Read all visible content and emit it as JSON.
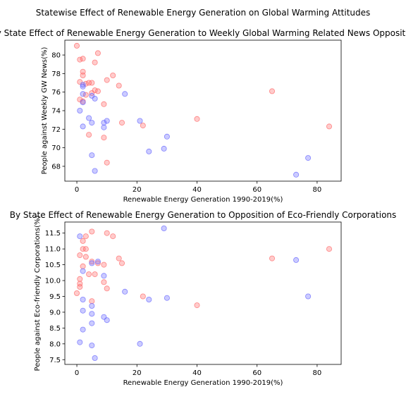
{
  "figure": {
    "suptitle": "Statewise Effect of Renewable Energy Generation on Global Warming Attitudes"
  },
  "chart_data": [
    {
      "type": "scatter",
      "title": "By State Effect of Renewable Energy Generation to Weekly Global Warming Related News Opposition",
      "xlabel": "Renewable Energy Generation 1990-2019(%)",
      "ylabel": "People against Weekly GW News(%)",
      "xlim": [
        -4,
        88
      ],
      "ylim": [
        66.4,
        81.6
      ],
      "xticks": [
        0,
        20,
        40,
        60,
        80
      ],
      "yticks": [
        68,
        70,
        72,
        74,
        76,
        78,
        80
      ],
      "grid": false,
      "series": [
        {
          "color": "#ff6b6b",
          "points": [
            [
              0,
              81.0
            ],
            [
              7,
              80.2
            ],
            [
              1,
              79.5
            ],
            [
              2,
              79.6
            ],
            [
              6,
              79.2
            ],
            [
              2,
              78.2
            ],
            [
              2,
              77.8
            ],
            [
              12,
              77.8
            ],
            [
              1,
              77.1
            ],
            [
              3,
              76.9
            ],
            [
              4,
              77.0
            ],
            [
              5,
              77.0
            ],
            [
              10,
              77.3
            ],
            [
              14,
              76.7
            ],
            [
              6,
              76.2
            ],
            [
              7,
              76.1
            ],
            [
              3,
              75.7
            ],
            [
              5,
              75.9
            ],
            [
              65,
              76.1
            ],
            [
              1,
              75.2
            ],
            [
              2,
              75.0
            ],
            [
              9,
              74.7
            ],
            [
              40,
              73.1
            ],
            [
              15,
              72.7
            ],
            [
              22,
              72.4
            ],
            [
              84,
              72.3
            ],
            [
              4,
              71.4
            ],
            [
              9,
              71.1
            ],
            [
              10,
              68.4
            ]
          ]
        },
        {
          "color": "#6b6bff",
          "points": [
            [
              2,
              75.8
            ],
            [
              5,
              75.6
            ],
            [
              6,
              75.3
            ],
            [
              16,
              75.8
            ],
            [
              2,
              76.8
            ],
            [
              2,
              76.6
            ],
            [
              1,
              74.0
            ],
            [
              4,
              73.2
            ],
            [
              9,
              72.7
            ],
            [
              10,
              72.9
            ],
            [
              5,
              72.7
            ],
            [
              2,
              72.3
            ],
            [
              9,
              72.2
            ],
            [
              21,
              72.9
            ],
            [
              30,
              71.2
            ],
            [
              2,
              74.9
            ],
            [
              5,
              69.2
            ],
            [
              24,
              69.6
            ],
            [
              29,
              69.9
            ],
            [
              77,
              68.9
            ],
            [
              6,
              67.5
            ],
            [
              73,
              67.1
            ]
          ]
        }
      ]
    },
    {
      "type": "scatter",
      "title": "By State Effect of Renewable Energy Generation to Opposition of Eco-Friendly Corporations",
      "xlabel": "Renewable Energy Generation 1990-2019(%)",
      "ylabel": "People against Eco-friendly Corporations(%)",
      "xlim": [
        -4,
        88
      ],
      "ylim": [
        7.35,
        11.85
      ],
      "xticks": [
        0,
        20,
        40,
        60,
        80
      ],
      "yticks": [
        7.5,
        8.0,
        8.5,
        9.0,
        9.5,
        10.0,
        10.5,
        11.0,
        11.5
      ],
      "grid": false,
      "series": [
        {
          "color": "#ff6b6b",
          "points": [
            [
              5,
              11.55
            ],
            [
              10,
              11.5
            ],
            [
              12,
              11.4
            ],
            [
              3,
              11.4
            ],
            [
              2,
              11.25
            ],
            [
              2,
              11.0
            ],
            [
              3,
              11.0
            ],
            [
              84,
              11.0
            ],
            [
              1,
              10.8
            ],
            [
              3,
              10.75
            ],
            [
              14,
              10.7
            ],
            [
              65,
              10.7
            ],
            [
              5,
              10.6
            ],
            [
              7,
              10.55
            ],
            [
              15,
              10.55
            ],
            [
              2,
              10.45
            ],
            [
              9,
              10.5
            ],
            [
              4,
              10.2
            ],
            [
              6,
              10.2
            ],
            [
              1,
              10.05
            ],
            [
              9,
              9.95
            ],
            [
              1,
              9.9
            ],
            [
              1,
              9.8
            ],
            [
              10,
              9.75
            ],
            [
              0,
              9.6
            ],
            [
              22,
              9.5
            ],
            [
              5,
              9.35
            ],
            [
              40,
              9.22
            ]
          ]
        },
        {
          "color": "#6b6bff",
          "points": [
            [
              29,
              11.65
            ],
            [
              1,
              11.4
            ],
            [
              73,
              10.65
            ],
            [
              5,
              10.55
            ],
            [
              7,
              10.6
            ],
            [
              2,
              10.3
            ],
            [
              9,
              10.15
            ],
            [
              16,
              9.65
            ],
            [
              77,
              9.5
            ],
            [
              24,
              9.4
            ],
            [
              30,
              9.45
            ],
            [
              2,
              9.4
            ],
            [
              5,
              9.2
            ],
            [
              2,
              9.05
            ],
            [
              5,
              8.95
            ],
            [
              9,
              8.85
            ],
            [
              10,
              8.75
            ],
            [
              5,
              8.65
            ],
            [
              2,
              8.45
            ],
            [
              1,
              8.05
            ],
            [
              21,
              8.0
            ],
            [
              5,
              7.95
            ],
            [
              6,
              7.55
            ]
          ]
        }
      ]
    }
  ]
}
